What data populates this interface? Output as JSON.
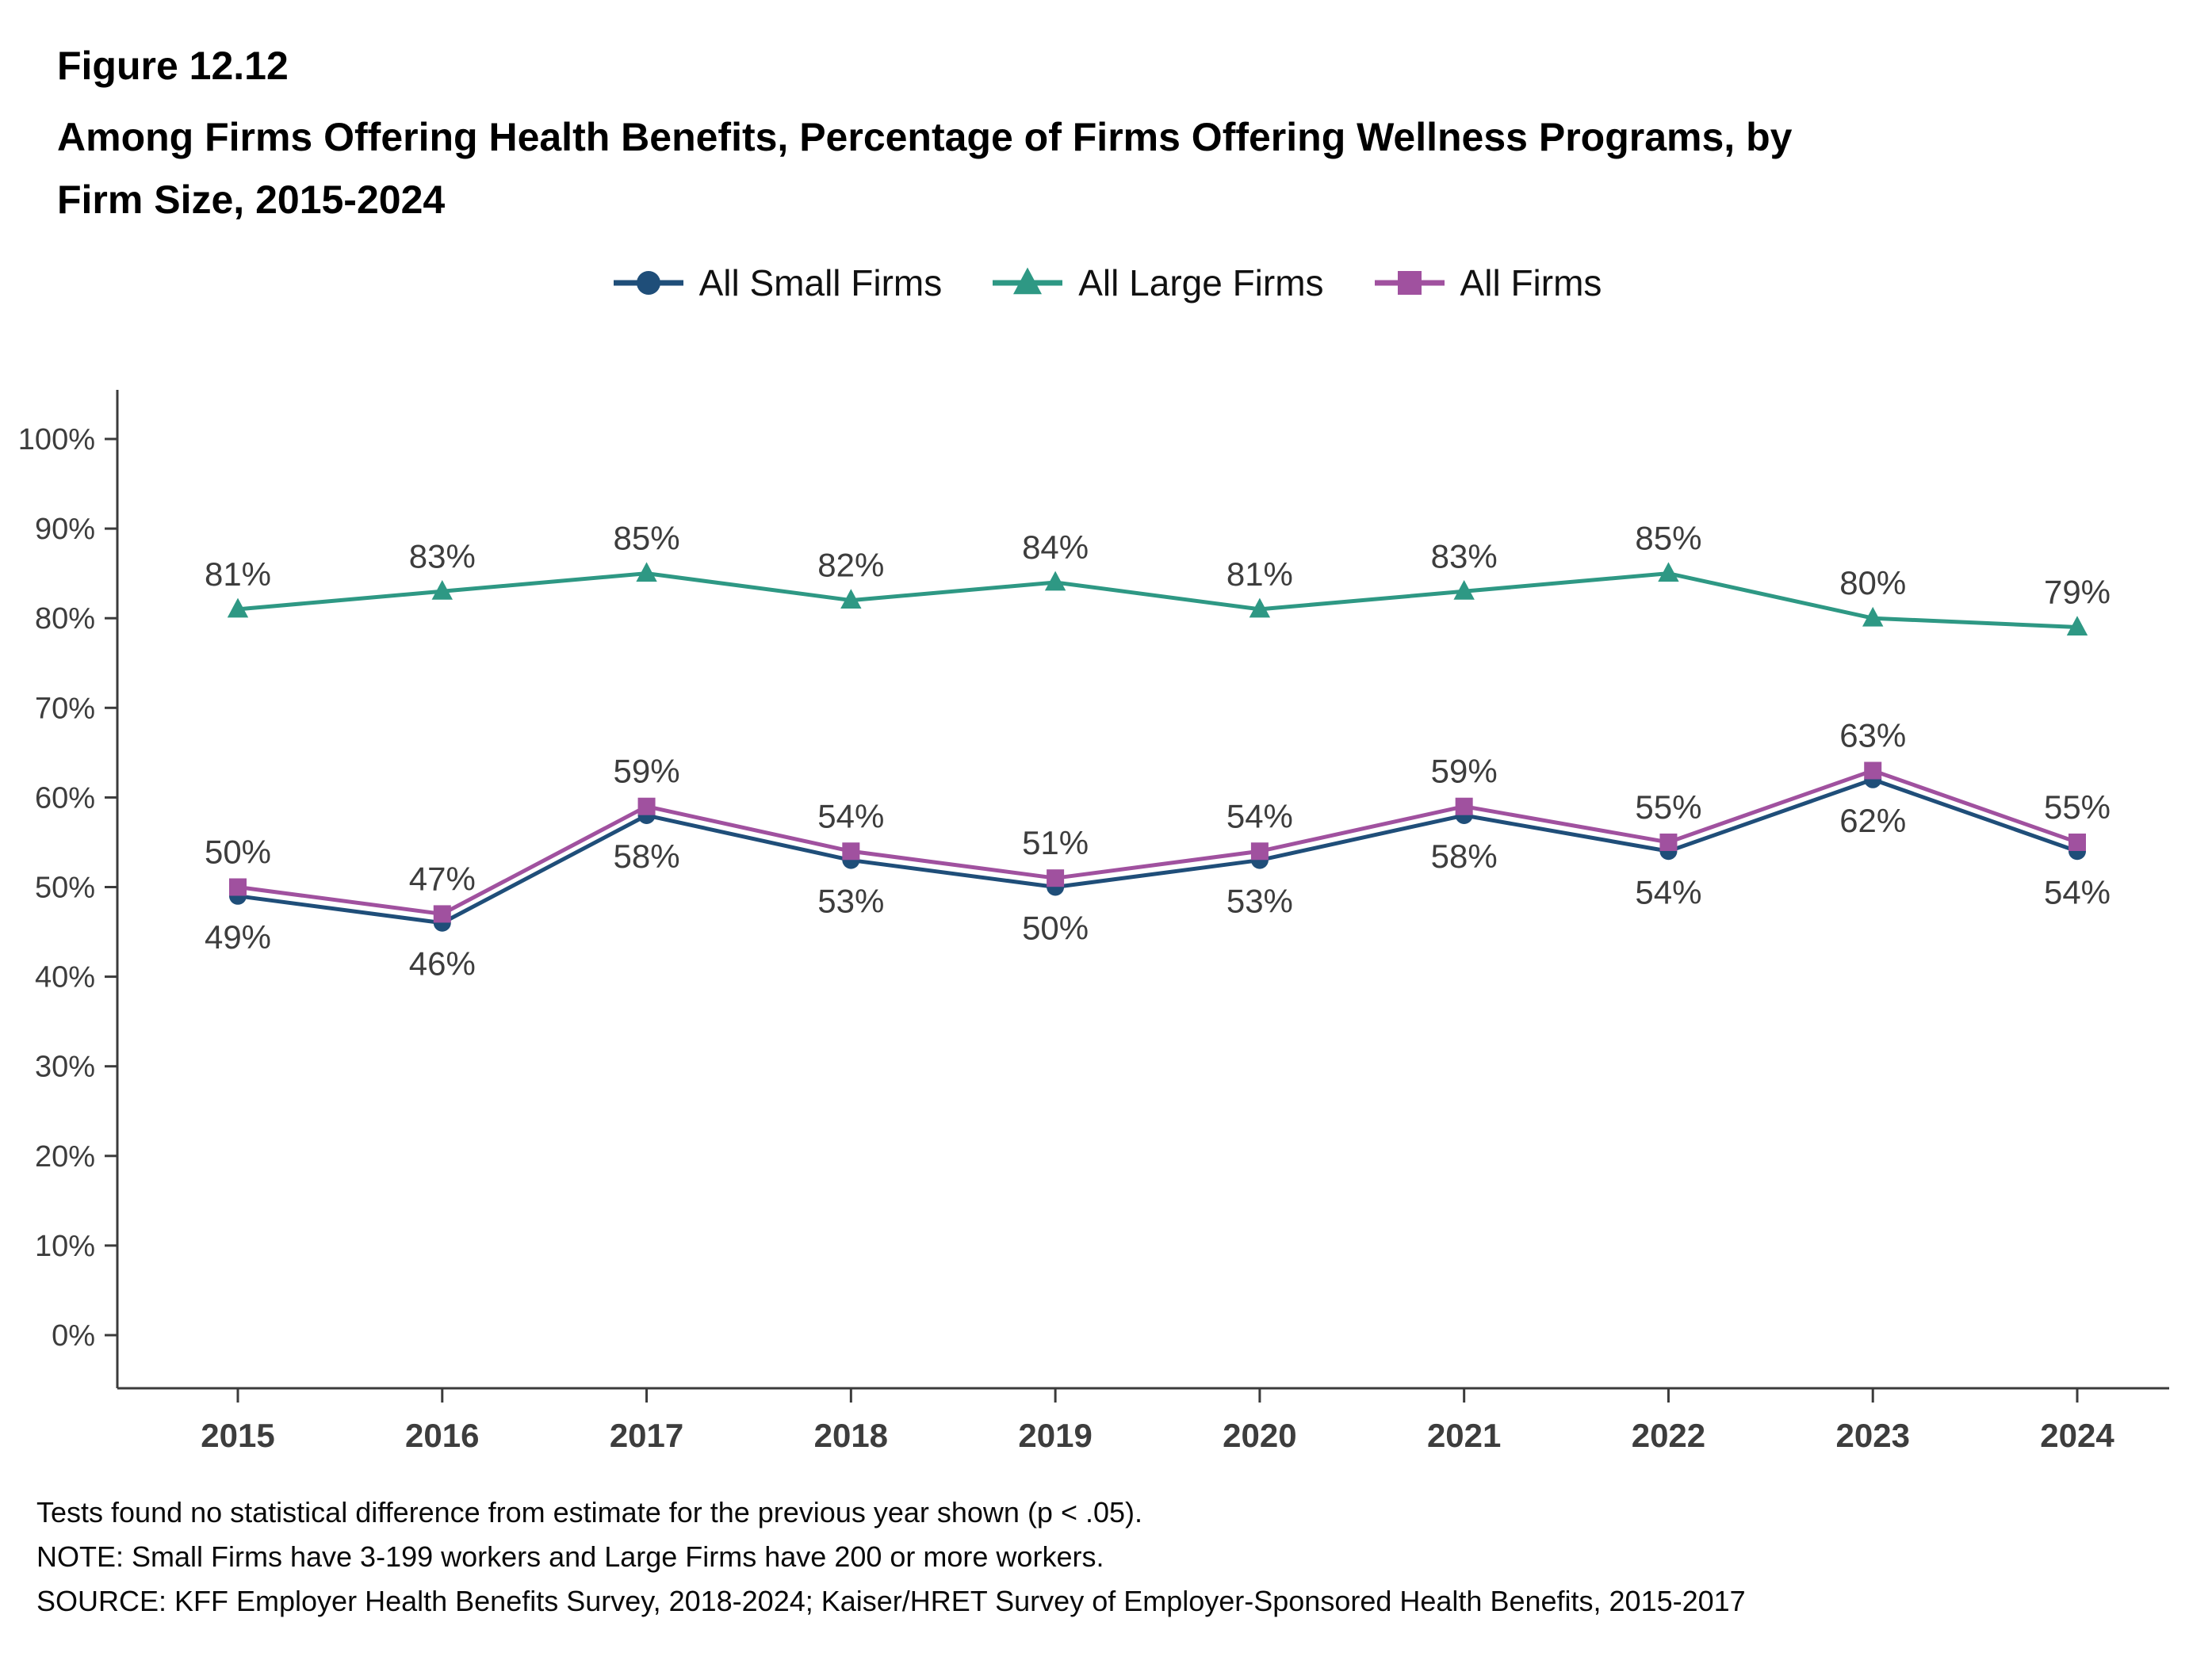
{
  "figure": {
    "number": "Figure 12.12",
    "title_lines": [
      "Among Firms Offering Health Benefits, Percentage of Firms Offering Wellness Programs, by",
      "Firm Size, 2015-2024"
    ]
  },
  "chart_data": {
    "type": "line",
    "title": "Among Firms Offering Health Benefits, Percentage of Firms Offering Wellness Programs, by Firm Size, 2015-2024",
    "categories": [
      "2015",
      "2016",
      "2017",
      "2018",
      "2019",
      "2020",
      "2021",
      "2022",
      "2023",
      "2024"
    ],
    "series": [
      {
        "name": "All Small Firms",
        "color": "#1f4e79",
        "marker": "circle",
        "label_position": "below",
        "values": [
          49,
          46,
          58,
          53,
          50,
          53,
          58,
          54,
          62,
          54
        ]
      },
      {
        "name": "All Large Firms",
        "color": "#2e9884",
        "marker": "triangle",
        "label_position": "above",
        "values": [
          81,
          83,
          85,
          82,
          84,
          81,
          83,
          85,
          80,
          79
        ]
      },
      {
        "name": "All Firms",
        "color": "#a0519f",
        "marker": "square",
        "label_position": "above",
        "values": [
          50,
          47,
          59,
          54,
          51,
          54,
          59,
          55,
          63,
          55
        ]
      }
    ],
    "xlabel": "",
    "ylabel": "",
    "ylim": [
      0,
      100
    ],
    "ytick_step": 10,
    "ytick_suffix": "%",
    "grid": false,
    "legend_position": "top",
    "axis_color": "#3b3b3b",
    "label_color": "#3d3d3d"
  },
  "footer": {
    "line1": "Tests found no statistical difference from estimate for the previous year shown (p < .05).",
    "line2": "NOTE: Small Firms have 3-199 workers and Large Firms have 200 or more workers.",
    "line3": "SOURCE: KFF Employer Health Benefits Survey, 2018-2024; Kaiser/HRET Survey of Employer-Sponsored Health Benefits, 2015-2017"
  }
}
